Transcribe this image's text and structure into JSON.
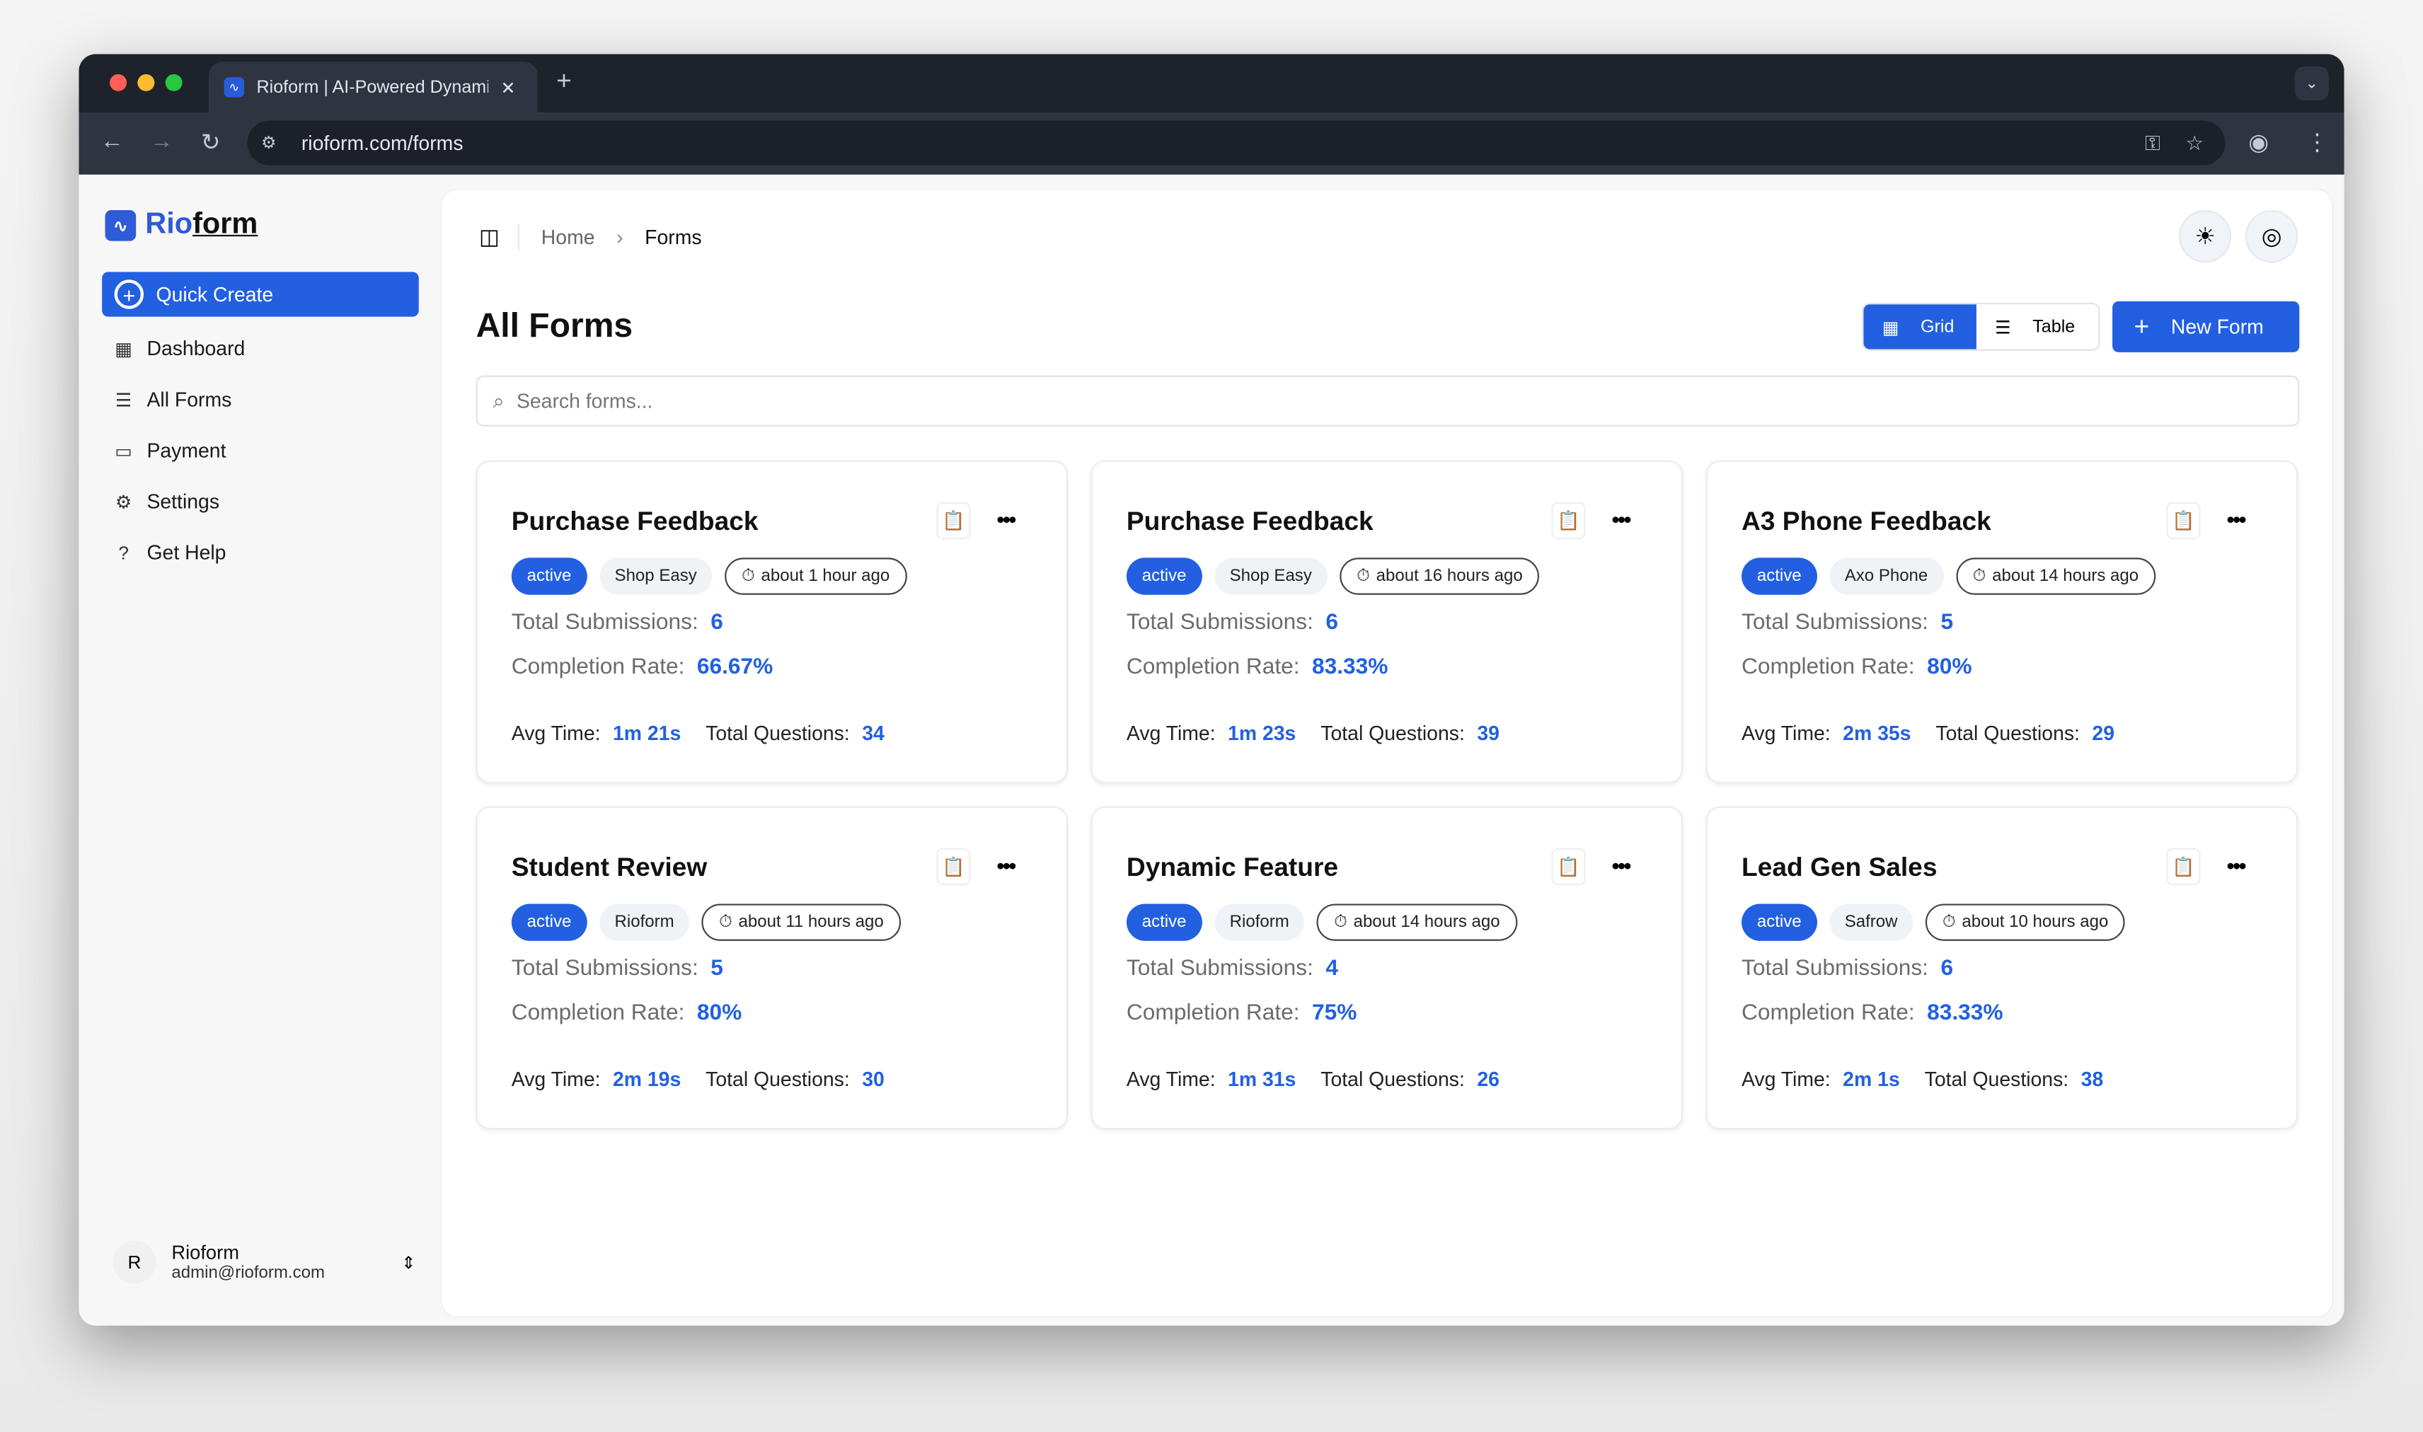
{
  "browser": {
    "tab_title": "Rioform | AI-Powered Dynamic Forms",
    "url": "rioform.com/forms"
  },
  "sidebar": {
    "logo_part1": "Rio",
    "logo_part2": "form",
    "quick_create": "Quick Create",
    "items": [
      {
        "label": "Dashboard",
        "icon": "dashboard-icon"
      },
      {
        "label": "All Forms",
        "icon": "list-icon"
      },
      {
        "label": "Payment",
        "icon": "credit-card-icon"
      },
      {
        "label": "Settings",
        "icon": "gear-icon"
      },
      {
        "label": "Get Help",
        "icon": "help-icon"
      }
    ],
    "user": {
      "initial": "R",
      "name": "Rioform",
      "email": "admin@rioform.com"
    }
  },
  "header": {
    "breadcrumb": [
      "Home",
      "Forms"
    ]
  },
  "page": {
    "title": "All Forms",
    "grid_label": "Grid",
    "table_label": "Table",
    "new_form": "New Form",
    "search_placeholder": "Search forms..."
  },
  "labels": {
    "submissions": "Total Submissions:",
    "completion": "Completion Rate:",
    "avg_time": "Avg Time:",
    "questions": "Total Questions:"
  },
  "cards": [
    {
      "title": "Purchase Feedback",
      "status": "active",
      "org": "Shop Easy",
      "updated": "about 1 hour ago",
      "submissions": "6",
      "completion": "66.67%",
      "avg_time": "1m 21s",
      "questions": "34"
    },
    {
      "title": "Purchase Feedback",
      "status": "active",
      "org": "Shop Easy",
      "updated": "about 16 hours ago",
      "submissions": "6",
      "completion": "83.33%",
      "avg_time": "1m 23s",
      "questions": "39"
    },
    {
      "title": "A3 Phone Feedback",
      "status": "active",
      "org": "Axo Phone",
      "updated": "about 14 hours ago",
      "submissions": "5",
      "completion": "80%",
      "avg_time": "2m 35s",
      "questions": "29"
    },
    {
      "title": "Student Review",
      "status": "active",
      "org": "Rioform",
      "updated": "about 11 hours ago",
      "submissions": "5",
      "completion": "80%",
      "avg_time": "2m 19s",
      "questions": "30"
    },
    {
      "title": "Dynamic Feature",
      "status": "active",
      "org": "Rioform",
      "updated": "about 14 hours ago",
      "submissions": "4",
      "completion": "75%",
      "avg_time": "1m 31s",
      "questions": "26"
    },
    {
      "title": "Lead Gen Sales",
      "status": "active",
      "org": "Safrow",
      "updated": "about 10 hours ago",
      "submissions": "6",
      "completion": "83.33%",
      "avg_time": "2m 1s",
      "questions": "38"
    }
  ],
  "colors": {
    "accent": "#2260e1",
    "browser_chrome": "#1e222b"
  }
}
